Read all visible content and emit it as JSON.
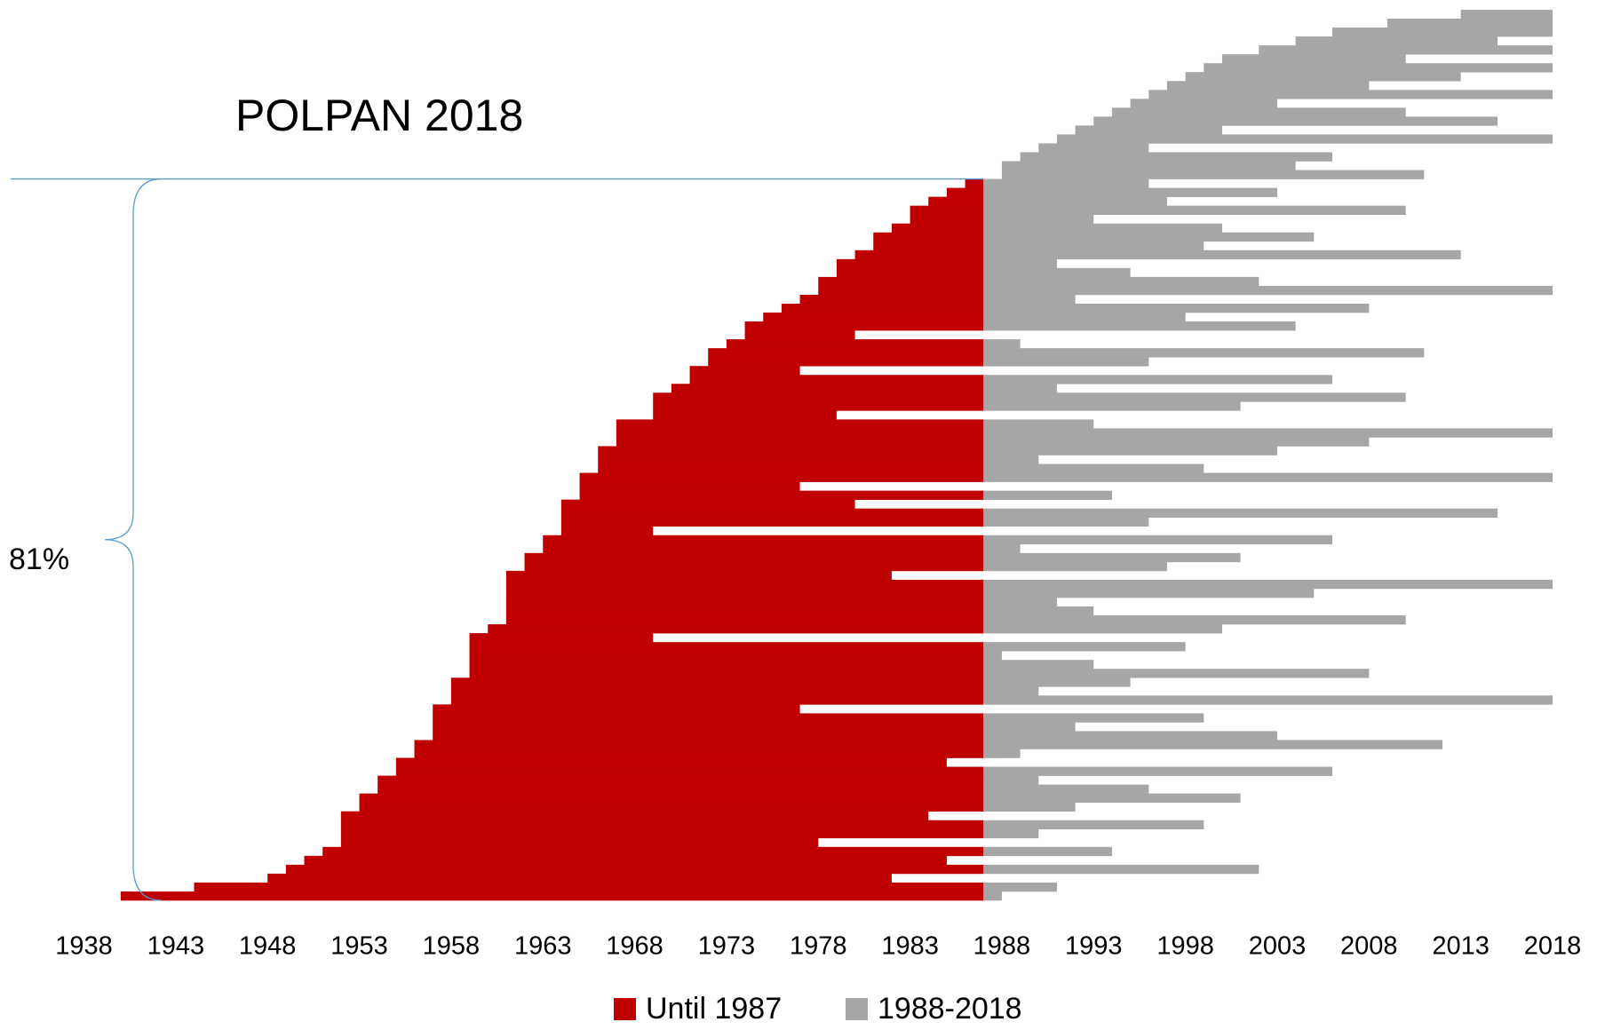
{
  "chart_data": {
    "type": "timeline",
    "title": "POLPAN 2018",
    "annotation": "81%",
    "split": 1987,
    "series": [
      {
        "name": "Until 1987",
        "color": "#c00000"
      },
      {
        "name": "1988-2018",
        "color": "#a6a6a6"
      }
    ],
    "start": [
      1940,
      1944,
      1948,
      1949,
      1950,
      1951,
      1952,
      1952,
      1952,
      1952,
      1953,
      1953,
      1954,
      1954,
      1955,
      1955,
      1956,
      1956,
      1957,
      1957,
      1957,
      1957,
      1958,
      1958,
      1958,
      1959,
      1959,
      1959,
      1959,
      1959,
      1960,
      1961,
      1961,
      1961,
      1961,
      1961,
      1961,
      1962,
      1962,
      1963,
      1963,
      1964,
      1964,
      1964,
      1964,
      1965,
      1965,
      1965,
      1966,
      1966,
      1966,
      1967,
      1967,
      1967,
      1969,
      1969,
      1969,
      1970,
      1971,
      1971,
      1972,
      1972,
      1973,
      1974,
      1974,
      1975,
      1976,
      1977,
      1978,
      1978,
      1979,
      1979,
      1980,
      1981,
      1981,
      1982,
      1983,
      1983,
      1984,
      1985,
      1986,
      1988,
      1988,
      1989,
      1990,
      1991,
      1992,
      1993,
      1994,
      1995,
      1996,
      1997,
      1998,
      1999,
      2000,
      2002,
      2004,
      2006,
      2009,
      2013
    ],
    "end": [
      1988,
      1991,
      1982,
      2002,
      1985,
      1994,
      1978,
      1990,
      1999,
      1984,
      1992,
      2001,
      1996,
      1990,
      2006,
      1985,
      1989,
      2012,
      2003,
      1992,
      1999,
      1977,
      2018,
      1990,
      1995,
      2008,
      1993,
      1988,
      1998,
      1969,
      2000,
      2010,
      1993,
      1991,
      2005,
      2018,
      1982,
      1997,
      2001,
      1989,
      2006,
      1969,
      1996,
      2015,
      1980,
      1994,
      1977,
      2018,
      1999,
      1990,
      2003,
      2008,
      2018,
      1993,
      1979,
      2001,
      2010,
      1991,
      2006,
      1977,
      1996,
      2011,
      1989,
      1980,
      2004,
      1998,
      2008,
      1992,
      2018,
      2002,
      1995,
      1991,
      2013,
      1999,
      2005,
      2000,
      1993,
      2010,
      1997,
      2003,
      1996,
      2011,
      2004,
      2006,
      1996,
      2018,
      2000,
      2015,
      2010,
      2003,
      2018,
      2008,
      2013,
      2018,
      2010,
      2018,
      2015,
      2018,
      2018,
      2018
    ],
    "xlim": [
      1938,
      2018
    ],
    "xticks": [
      1938,
      1943,
      1948,
      1953,
      1958,
      1963,
      1968,
      1973,
      1978,
      1983,
      1988,
      1993,
      1998,
      2003,
      2008,
      2013,
      2018
    ]
  }
}
